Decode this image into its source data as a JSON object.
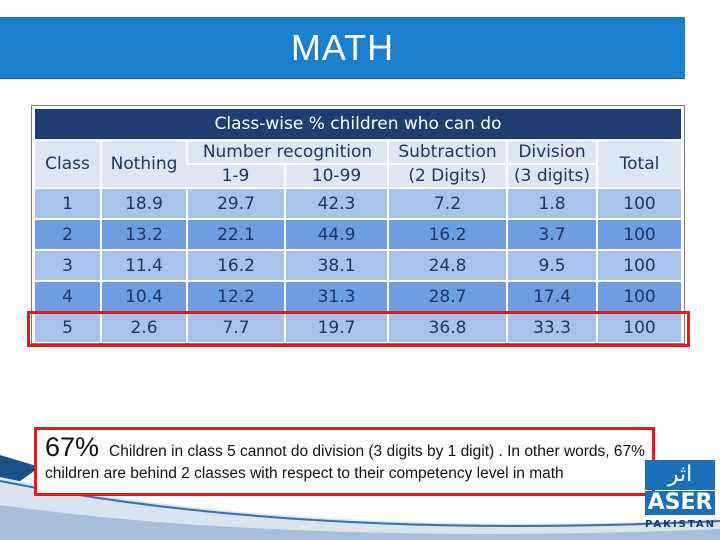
{
  "header": {
    "title": "MATH"
  },
  "table": {
    "title": "Class-wise % children who can do",
    "headers": {
      "class": "Class",
      "nothing": "Nothing",
      "number_recognition": "Number recognition",
      "nr_1_9": "1-9",
      "nr_10_99": "10-99",
      "subtraction": "Subtraction",
      "subtraction_sub": "(2 Digits)",
      "division": "Division",
      "division_sub": "(3 digits)",
      "total": "Total"
    },
    "rows": [
      [
        "1",
        "18.9",
        "29.7",
        "42.3",
        "7.2",
        "1.8",
        "100"
      ],
      [
        "2",
        "13.2",
        "22.1",
        "44.9",
        "16.2",
        "3.7",
        "100"
      ],
      [
        "3",
        "11.4",
        "16.2",
        "38.1",
        "24.8",
        "9.5",
        "100"
      ],
      [
        "4",
        "10.4",
        "12.2",
        "31.3",
        "28.7",
        "17.4",
        "100"
      ],
      [
        "5",
        "2.6",
        "7.7",
        "19.7",
        "36.8",
        "33.3",
        "100"
      ]
    ],
    "highlighted_class": "5"
  },
  "note": {
    "percent": "67%",
    "text": "Children in class 5 cannot do division (3 digits by 1 digit) . In other words, 67% children are behind 2 classes with respect to their competency level in math"
  },
  "logo": {
    "urdu": "اثر",
    "name": "ASER",
    "country": "PAKISTAN"
  },
  "colors": {
    "header": "#1b7fd0",
    "table_title": "#203d73",
    "row_light": "#a9c2ea",
    "row_dark": "#6f9ee0",
    "highlight": "#e41b1b"
  }
}
